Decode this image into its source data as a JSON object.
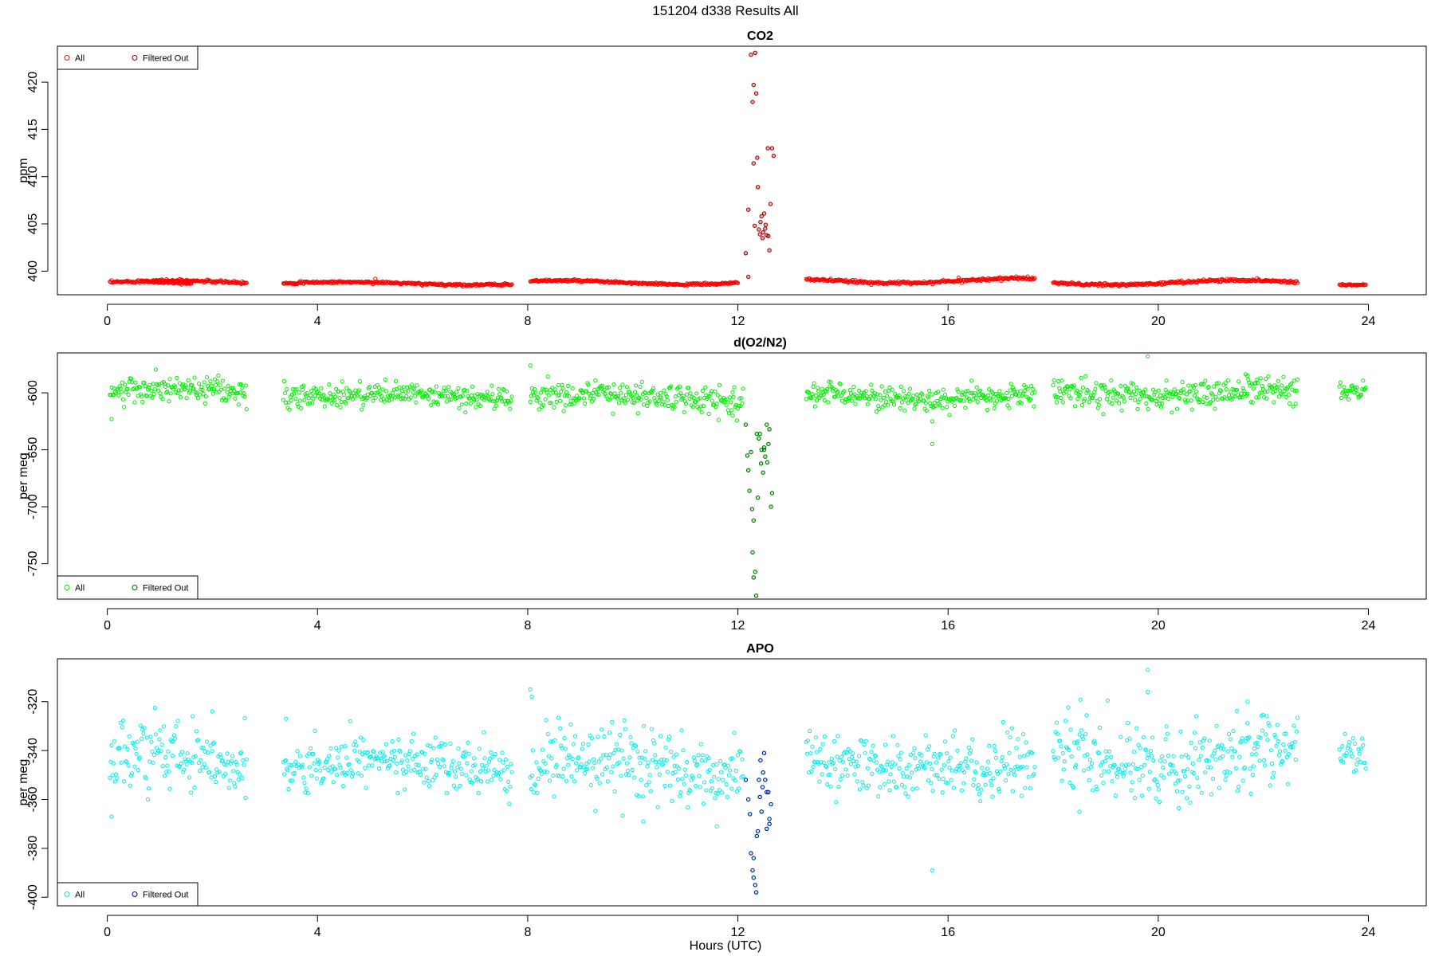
{
  "figure": {
    "title": "151204   d338   Results All",
    "xlabel": "Hours (UTC)"
  },
  "colors": {
    "co2_all": "#ff0000",
    "co2_filtered": "#8b0000",
    "o2_all": "#00ee00",
    "o2_filtered": "#006400",
    "apo_all": "#00eeee",
    "apo_filtered": "#00008b"
  },
  "chart_data": [
    {
      "type": "scatter",
      "title": "CO2",
      "ylabel": "ppm",
      "xlim": [
        -0.95,
        25.1
      ],
      "ylim": [
        397.5,
        423.8
      ],
      "xticks": [
        0,
        4,
        8,
        12,
        16,
        20,
        24
      ],
      "yticks": [
        400,
        405,
        410,
        415,
        420
      ],
      "legend": {
        "position": "top-left",
        "entries": [
          "All",
          "Filtered Out"
        ]
      },
      "grid": false,
      "series": [
        {
          "name": "All",
          "kind": "segments",
          "segments": [
            {
              "x": [
                0.05,
                2.65
              ],
              "base": 398.8,
              "amp": 0.2,
              "noise": 0.12
            },
            {
              "x": [
                0.65,
                1.6
              ],
              "base": 398.7,
              "amp": 0.25,
              "noise": 0.12
            },
            {
              "x": [
                3.35,
                7.7
              ],
              "base": 398.7,
              "amp": 0.15,
              "noise": 0.1
            },
            {
              "x": [
                8.05,
                12.0
              ],
              "base": 398.8,
              "amp": 0.2,
              "noise": 0.1
            },
            {
              "x": [
                13.3,
                17.65
              ],
              "base": 399.0,
              "amp": 0.25,
              "noise": 0.12
            },
            {
              "x": [
                18.0,
                22.65
              ],
              "base": 398.8,
              "amp": 0.25,
              "noise": 0.12
            },
            {
              "x": [
                23.45,
                23.95
              ],
              "base": 398.6,
              "amp": 0.05,
              "noise": 0.08
            }
          ],
          "outliers": [
            {
              "x": 5.1,
              "y": 399.2
            },
            {
              "x": 16.2,
              "y": 399.3
            }
          ]
        },
        {
          "name": "Filtered Out",
          "x": [
            12.15,
            12.2,
            12.25,
            12.28,
            12.3,
            12.33,
            12.35,
            12.38,
            12.4,
            12.42,
            12.45,
            12.47,
            12.5,
            12.52,
            12.55,
            12.58,
            12.6,
            12.62,
            12.65,
            12.68,
            12.2,
            12.3,
            12.32,
            12.37,
            12.43,
            12.48,
            12.53,
            12.57
          ],
          "y": [
            401.9,
            406.5,
            422.9,
            417.9,
            419.7,
            423.1,
            418.8,
            408.9,
            404.4,
            403.9,
            405.8,
            403.5,
            406.1,
            404.5,
            403.8,
            403.7,
            402.2,
            407.1,
            413.0,
            412.2,
            399.4,
            411.4,
            404.8,
            412.0,
            405.2,
            404.1,
            404.9,
            413.0
          ]
        }
      ]
    },
    {
      "type": "scatter",
      "title": "d(O2/N2)",
      "ylabel": "per meg",
      "xlim": [
        -0.95,
        25.1
      ],
      "ylim": [
        -781,
        -565
      ],
      "xticks": [
        0,
        4,
        8,
        12,
        16,
        20,
        24
      ],
      "yticks": [
        -750,
        -700,
        -650,
        -600
      ],
      "legend": {
        "position": "bottom-left",
        "entries": [
          "All",
          "Filtered Out"
        ]
      },
      "grid": false,
      "series": [
        {
          "name": "All",
          "kind": "segments",
          "segments": [
            {
              "x": [
                0.05,
                2.65
              ],
              "base": -600,
              "amp": 3,
              "noise": 6
            },
            {
              "x": [
                3.35,
                7.7
              ],
              "base": -603,
              "amp": 2,
              "noise": 5
            },
            {
              "x": [
                8.05,
                12.1
              ],
              "base": -604,
              "amp": 3,
              "noise": 6
            },
            {
              "x": [
                13.3,
                17.65
              ],
              "base": -603,
              "amp": 3,
              "noise": 5
            },
            {
              "x": [
                18.0,
                22.65
              ],
              "base": -600,
              "amp": 3,
              "noise": 6
            },
            {
              "x": [
                23.45,
                23.95
              ],
              "base": -596,
              "amp": 2,
              "noise": 4
            }
          ],
          "outliers": [
            {
              "x": 0.08,
              "y": -623
            },
            {
              "x": 8.05,
              "y": -576
            },
            {
              "x": 15.7,
              "y": -645
            },
            {
              "x": 15.7,
              "y": -625
            },
            {
              "x": 19.8,
              "y": -568
            },
            {
              "x": 21.7,
              "y": -585
            },
            {
              "x": 11.9,
              "y": -620
            },
            {
              "x": 10.1,
              "y": -618
            }
          ]
        },
        {
          "name": "Filtered Out",
          "x": [
            12.15,
            12.18,
            12.2,
            12.25,
            12.28,
            12.3,
            12.33,
            12.35,
            12.38,
            12.4,
            12.42,
            12.45,
            12.48,
            12.5,
            12.52,
            12.55,
            12.58,
            12.6,
            12.63,
            12.65,
            12.22,
            12.27,
            12.3,
            12.36,
            12.44,
            12.5,
            12.56
          ],
          "y": [
            -628,
            -655,
            -668,
            -652,
            -740,
            -762,
            -757,
            -778,
            -692,
            -640,
            -636,
            -650,
            -670,
            -650,
            -656,
            -628,
            -645,
            -632,
            -700,
            -688,
            -686,
            -702,
            -712,
            -636,
            -662,
            -648,
            -661
          ]
        }
      ]
    },
    {
      "type": "scatter",
      "title": "APO",
      "ylabel": "per meg",
      "xlim": [
        -0.95,
        25.1
      ],
      "ylim": [
        -403.5,
        -302.5
      ],
      "xticks": [
        0,
        4,
        8,
        12,
        16,
        20,
        24
      ],
      "yticks": [
        -400,
        -380,
        -360,
        -340,
        -320
      ],
      "legend": {
        "position": "bottom-left",
        "entries": [
          "All",
          "Filtered Out"
        ]
      },
      "grid": false,
      "series": [
        {
          "name": "All",
          "kind": "segments",
          "segments": [
            {
              "x": [
                0.05,
                2.65
              ],
              "base": -344,
              "amp": 3,
              "noise": 7
            },
            {
              "x": [
                3.35,
                7.7
              ],
              "base": -346,
              "amp": 2,
              "noise": 5
            },
            {
              "x": [
                8.05,
                12.1
              ],
              "base": -347,
              "amp": 3,
              "noise": 7
            },
            {
              "x": [
                13.3,
                17.65
              ],
              "base": -346,
              "amp": 2,
              "noise": 6
            },
            {
              "x": [
                18.0,
                22.65
              ],
              "base": -343,
              "amp": 3,
              "noise": 7
            },
            {
              "x": [
                23.45,
                23.95
              ],
              "base": -340,
              "amp": 2,
              "noise": 4
            }
          ],
          "outliers": [
            {
              "x": 0.08,
              "y": -367
            },
            {
              "x": 8.05,
              "y": -315
            },
            {
              "x": 8.08,
              "y": -318
            },
            {
              "x": 15.7,
              "y": -389
            },
            {
              "x": 19.8,
              "y": -307
            },
            {
              "x": 19.8,
              "y": -316
            },
            {
              "x": 21.7,
              "y": -320
            },
            {
              "x": 2.0,
              "y": -324
            },
            {
              "x": 3.4,
              "y": -327
            },
            {
              "x": 10.2,
              "y": -369
            },
            {
              "x": 11.6,
              "y": -371
            },
            {
              "x": 18.5,
              "y": -365
            }
          ]
        },
        {
          "name": "Filtered Out",
          "x": [
            12.15,
            12.2,
            12.25,
            12.28,
            12.3,
            12.33,
            12.35,
            12.38,
            12.4,
            12.43,
            12.45,
            12.48,
            12.5,
            12.52,
            12.55,
            12.58,
            12.6,
            12.63,
            12.23,
            12.3,
            12.36,
            12.42,
            12.47,
            12.55,
            12.6
          ],
          "y": [
            -352,
            -360,
            -382,
            -389,
            -392,
            -395,
            -398,
            -373,
            -352,
            -344,
            -365,
            -349,
            -341,
            -352,
            -357,
            -357,
            -370,
            -362,
            -366,
            -384,
            -375,
            -359,
            -355,
            -372,
            -368
          ]
        }
      ]
    }
  ]
}
